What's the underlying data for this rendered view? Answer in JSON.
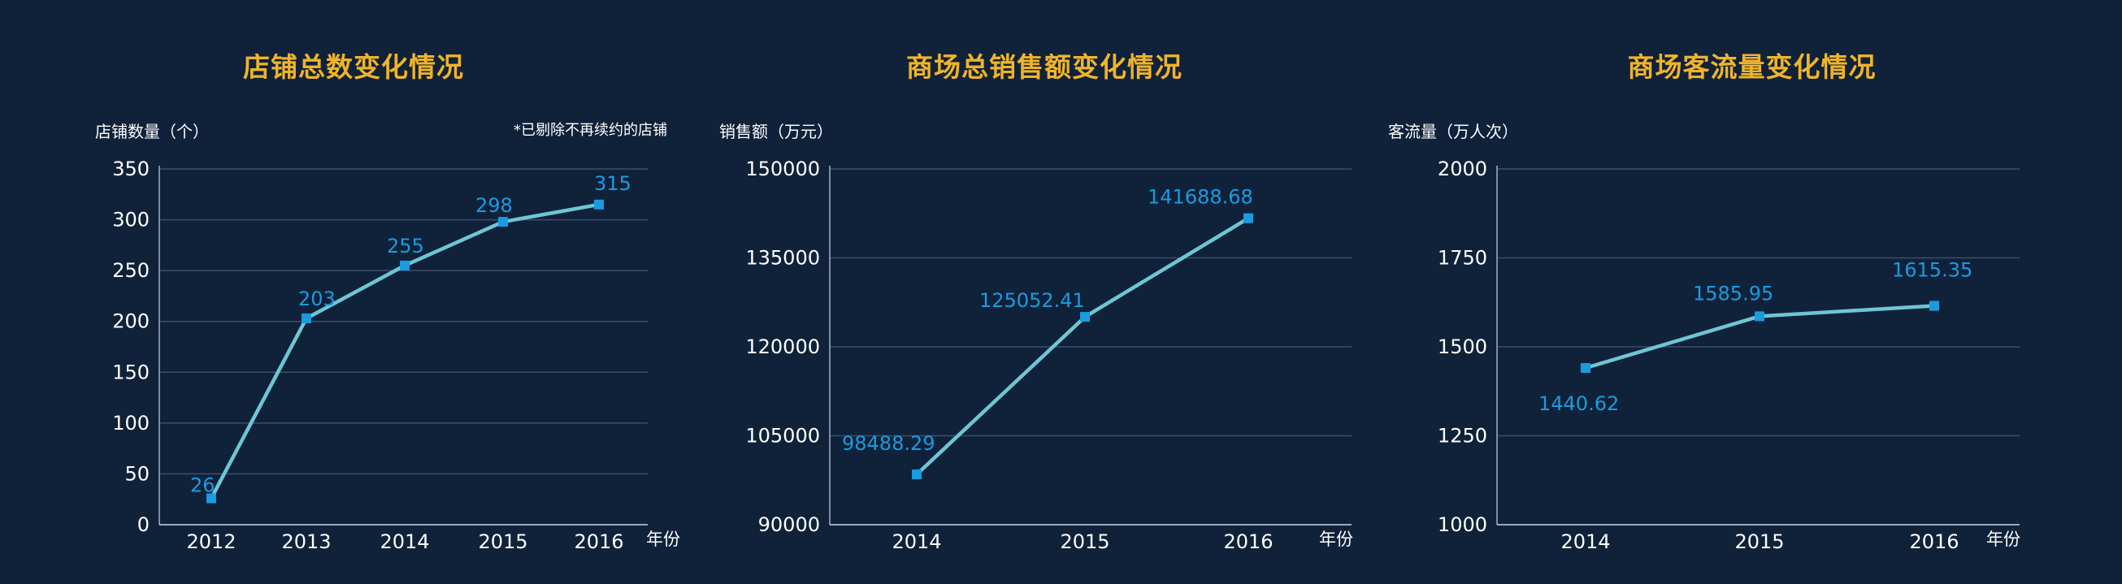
{
  "chart_data": [
    {
      "type": "line",
      "title": "店铺总数变化情况",
      "ylabel": "店铺数量（个）",
      "xlabel": "年份",
      "note": "*已剔除不再续约的店铺",
      "x": [
        "2012",
        "2013",
        "2014",
        "2015",
        "2016"
      ],
      "y": [
        26,
        203,
        255,
        298,
        315
      ],
      "data_labels": [
        "26",
        "203",
        "255",
        "298",
        "315"
      ],
      "y_ticks": [
        "0",
        "50",
        "100",
        "150",
        "200",
        "250",
        "300",
        "350"
      ],
      "ylim": [
        0,
        350
      ],
      "grid": true,
      "colors": {
        "line": "#6ec6d4",
        "marker": "#1a9be0",
        "label": "#1a9be0"
      }
    },
    {
      "type": "line",
      "title": "商场总销售额变化情况",
      "ylabel": "销售额（万元）",
      "xlabel": "年份",
      "x": [
        "2014",
        "2015",
        "2016"
      ],
      "y": [
        98488.29,
        125052.41,
        141688.68
      ],
      "data_labels": [
        "98488.29",
        "125052.41",
        "141688.68"
      ],
      "y_ticks": [
        "90000",
        "105000",
        "120000",
        "135000",
        "150000"
      ],
      "ylim": [
        90000,
        150000
      ],
      "grid": true,
      "colors": {
        "line": "#6ec6d4",
        "marker": "#1a9be0",
        "label": "#1a9be0"
      }
    },
    {
      "type": "line",
      "title": "商场客流量变化情况",
      "ylabel": "客流量（万人次）",
      "xlabel": "年份",
      "x": [
        "2014",
        "2015",
        "2016"
      ],
      "y": [
        1440.62,
        1585.95,
        1615.35
      ],
      "data_labels": [
        "1440.62",
        "1585.95",
        "1615.35"
      ],
      "y_ticks": [
        "1000",
        "1250",
        "1500",
        "1750",
        "2000"
      ],
      "ylim": [
        1000,
        2000
      ],
      "grid": true,
      "colors": {
        "line": "#6ec6d4",
        "marker": "#1a9be0",
        "label": "#1a9be0"
      }
    }
  ],
  "theme": {
    "background": "#10223a",
    "title_color": "#f0b429",
    "text_color": "#ffffff",
    "grid_color": "#3a4f6b"
  }
}
